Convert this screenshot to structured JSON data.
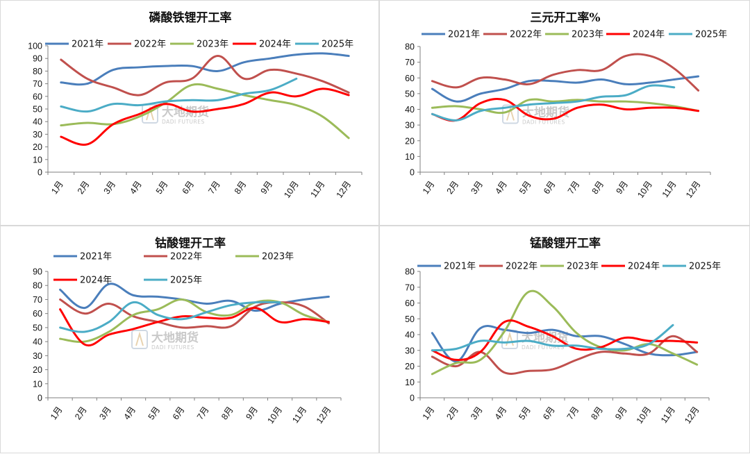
{
  "months": [
    "1月",
    "2月",
    "3月",
    "4月",
    "5月",
    "6月",
    "7月",
    "8月",
    "9月",
    "10月",
    "11月",
    "12月"
  ],
  "colors": {
    "2021年": "#4a7ebb",
    "2022年": "#c0504d",
    "2023年": "#9bbb59",
    "2024年": "#ff0000",
    "2025年": "#4bacc6"
  },
  "watermark": {
    "name": "大地期货",
    "sub": "DADI FUTURES"
  },
  "chart_data": [
    {
      "type": "line",
      "title": "磷酸铁锂开工率",
      "ylim": [
        0,
        100
      ],
      "ystep": 10,
      "legend": "top",
      "series": [
        {
          "name": "2021年",
          "values": [
            71,
            70,
            81,
            83,
            84,
            84,
            80,
            87,
            90,
            93,
            94,
            92
          ]
        },
        {
          "name": "2022年",
          "values": [
            89,
            74,
            67,
            61,
            71,
            74,
            92,
            74,
            81,
            78,
            72,
            63
          ]
        },
        {
          "name": "2023年",
          "values": [
            37,
            39,
            38,
            44,
            55,
            69,
            66,
            61,
            57,
            53,
            44,
            27
          ]
        },
        {
          "name": "2024年",
          "values": [
            28,
            22,
            38,
            46,
            54,
            48,
            50,
            54,
            63,
            60,
            66,
            61
          ]
        },
        {
          "name": "2025年",
          "values": [
            52,
            48,
            54,
            53,
            56,
            57,
            57,
            62,
            65,
            74,
            null,
            null
          ]
        }
      ]
    },
    {
      "type": "line",
      "title": "三元开工率%",
      "ylim": [
        0,
        80
      ],
      "ystep": 10,
      "legend": "top",
      "series": [
        {
          "name": "2021年",
          "values": [
            53,
            45,
            50,
            53,
            58,
            58,
            57,
            59,
            56,
            57,
            59,
            61
          ]
        },
        {
          "name": "2022年",
          "values": [
            58,
            54,
            60,
            59,
            56,
            62,
            65,
            65,
            74,
            74,
            66,
            52
          ]
        },
        {
          "name": "2023年",
          "values": [
            41,
            42,
            40,
            38,
            46,
            45,
            46,
            45,
            45,
            44,
            42,
            39
          ]
        },
        {
          "name": "2024年",
          "values": [
            37,
            33,
            44,
            46,
            36,
            34,
            41,
            43,
            40,
            41,
            41,
            39
          ]
        },
        {
          "name": "2025年",
          "values": [
            37,
            33,
            39,
            41,
            43,
            44,
            45,
            48,
            49,
            55,
            54,
            null
          ]
        }
      ]
    },
    {
      "type": "line",
      "title": "钴酸锂开工率",
      "ylim": [
        0,
        90
      ],
      "ystep": 10,
      "legend": "top",
      "series": [
        {
          "name": "2021年",
          "values": [
            77,
            64,
            81,
            73,
            72,
            70,
            67,
            69,
            62,
            67,
            70,
            72
          ]
        },
        {
          "name": "2022年",
          "values": [
            70,
            60,
            67,
            58,
            54,
            50,
            51,
            51,
            65,
            68,
            65,
            53
          ]
        },
        {
          "name": "2023年",
          "values": [
            42,
            40,
            47,
            59,
            63,
            70,
            61,
            59,
            68,
            68,
            59,
            54
          ]
        },
        {
          "name": "2024年",
          "values": [
            63,
            38,
            45,
            49,
            54,
            58,
            57,
            57,
            64,
            54,
            56,
            54
          ]
        },
        {
          "name": "2025年",
          "values": [
            50,
            47,
            54,
            68,
            59,
            56,
            61,
            66,
            68,
            68,
            null,
            null
          ]
        }
      ]
    },
    {
      "type": "line",
      "title": "锰酸锂开工率",
      "ylim": [
        0,
        80
      ],
      "ystep": 10,
      "legend": "top",
      "series": [
        {
          "name": "2021年",
          "values": [
            41,
            23,
            44,
            43,
            41,
            43,
            39,
            39,
            34,
            28,
            27,
            29
          ]
        },
        {
          "name": "2022年",
          "values": [
            26,
            20,
            29,
            16,
            17,
            18,
            24,
            29,
            28,
            28,
            39,
            29
          ]
        },
        {
          "name": "2023年",
          "values": [
            15,
            22,
            24,
            42,
            67,
            58,
            41,
            32,
            30,
            34,
            28,
            21
          ]
        },
        {
          "name": "2024年",
          "values": [
            30,
            24,
            29,
            48,
            45,
            39,
            31,
            32,
            38,
            36,
            36,
            35
          ]
        },
        {
          "name": "2025年",
          "values": [
            30,
            31,
            36,
            35,
            36,
            33,
            33,
            31,
            31,
            34,
            46,
            null
          ]
        }
      ]
    }
  ]
}
